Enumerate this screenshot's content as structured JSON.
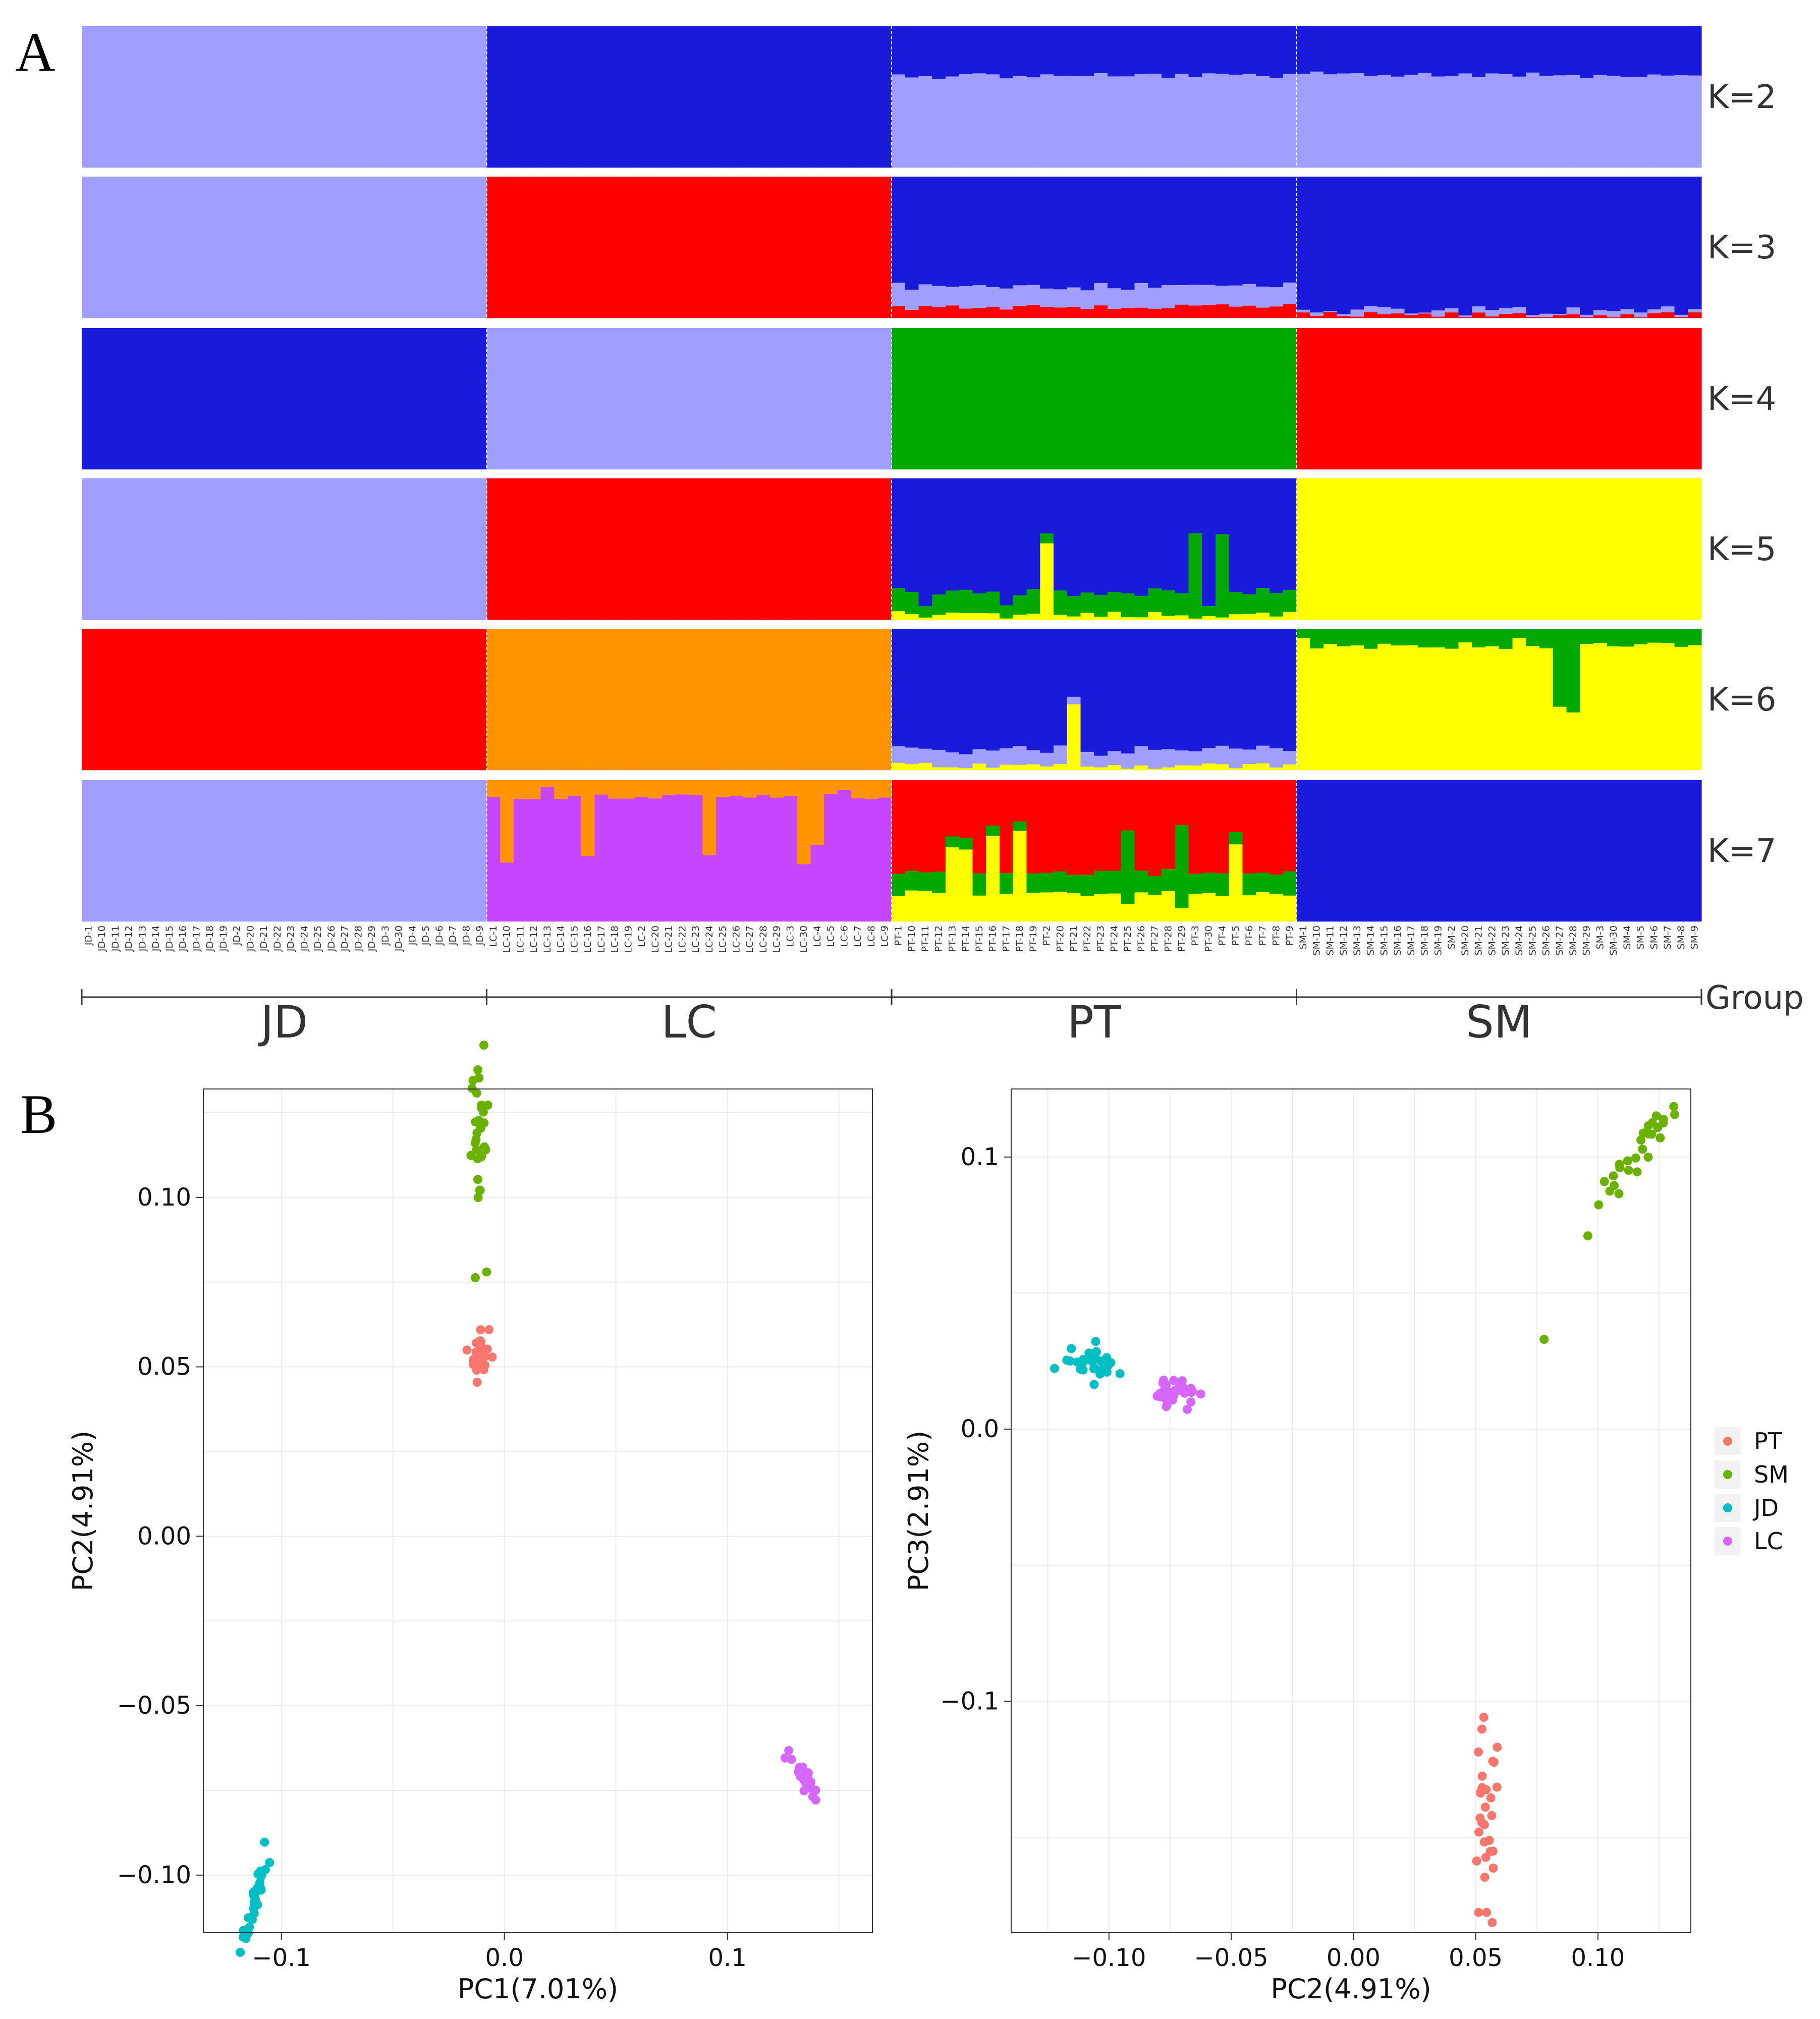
{
  "figure": {
    "panel_a_letter": "A",
    "panel_b_letter": "B"
  },
  "colors": {
    "lightblue": "#9f9fff",
    "blue": "#1a1adb",
    "red": "#ff0000",
    "green": "#00a800",
    "yellow": "#ffff00",
    "orange": "#ff9300",
    "purple": "#c646ff",
    "PT": "#f8766d",
    "SM": "#6bb100",
    "JD": "#00bfc4",
    "LC": "#d666ff"
  },
  "chart_data": [
    {
      "type": "bar",
      "subtype": "stacked-admixture",
      "title": "",
      "xlabel": "Group",
      "ylabel": "",
      "groups": [
        "JD",
        "LC",
        "PT",
        "SM"
      ],
      "group_axis_title": "Group",
      "samples": {
        "JD": [
          "JD-1",
          "JD-10",
          "JD-11",
          "JD-12",
          "JD-13",
          "JD-14",
          "JD-15",
          "JD-16",
          "JD-17",
          "JD-18",
          "JD-19",
          "JD-2",
          "JD-20",
          "JD-21",
          "JD-22",
          "JD-23",
          "JD-24",
          "JD-25",
          "JD-26",
          "JD-27",
          "JD-28",
          "JD-29",
          "JD-3",
          "JD-30",
          "JD-4",
          "JD-5",
          "JD-6",
          "JD-7",
          "JD-8",
          "JD-9"
        ],
        "LC": [
          "LC-1",
          "LC-10",
          "LC-11",
          "LC-12",
          "LC-13",
          "LC-14",
          "LC-15",
          "LC-16",
          "LC-17",
          "LC-18",
          "LC-19",
          "LC-2",
          "LC-20",
          "LC-21",
          "LC-22",
          "LC-23",
          "LC-24",
          "LC-25",
          "LC-26",
          "LC-27",
          "LC-28",
          "LC-29",
          "LC-3",
          "LC-30",
          "LC-4",
          "LC-5",
          "LC-6",
          "LC-7",
          "LC-8",
          "LC-9"
        ],
        "PT": [
          "PT-1",
          "PT-10",
          "PT-11",
          "PT-12",
          "PT-13",
          "PT-14",
          "PT-15",
          "PT-16",
          "PT-17",
          "PT-18",
          "PT-19",
          "PT-2",
          "PT-20",
          "PT-21",
          "PT-22",
          "PT-23",
          "PT-24",
          "PT-25",
          "PT-26",
          "PT-27",
          "PT-28",
          "PT-29",
          "PT-3",
          "PT-30",
          "PT-4",
          "PT-5",
          "PT-6",
          "PT-7",
          "PT-8",
          "PT-9"
        ],
        "SM": [
          "SM-1",
          "SM-10",
          "SM-11",
          "SM-12",
          "SM-13",
          "SM-14",
          "SM-15",
          "SM-16",
          "SM-17",
          "SM-18",
          "SM-19",
          "SM-2",
          "SM-20",
          "SM-21",
          "SM-22",
          "SM-23",
          "SM-24",
          "SM-25",
          "SM-26",
          "SM-27",
          "SM-28",
          "SM-29",
          "SM-3",
          "SM-30",
          "SM-4",
          "SM-5",
          "SM-6",
          "SM-7",
          "SM-8",
          "SM-9"
        ]
      },
      "rows": [
        {
          "label": "K=2",
          "base": {
            "JD": [
              "lightblue"
            ],
            "LC": [
              "blue"
            ],
            "PT": [
              "lightblue",
              "blue"
            ],
            "SM": [
              "lightblue",
              "blue"
            ]
          },
          "props": {
            "PT": [
              0.65,
              0.35
            ],
            "SM": [
              0.66,
              0.34
            ]
          }
        },
        {
          "label": "K=3",
          "base": {
            "JD": [
              "lightblue"
            ],
            "LC": [
              "red"
            ],
            "PT": [
              "red",
              "lightblue",
              "blue"
            ],
            "SM": [
              "red",
              "lightblue",
              "blue"
            ]
          },
          "props": {
            "PT": [
              0.08,
              0.15,
              0.77
            ],
            "SM": [
              0.02,
              0.03,
              0.95
            ]
          }
        },
        {
          "label": "K=4",
          "base": {
            "JD": [
              "blue"
            ],
            "LC": [
              "lightblue"
            ],
            "PT": [
              "green"
            ],
            "SM": [
              "red"
            ]
          }
        },
        {
          "label": "K=5",
          "base": {
            "JD": [
              "lightblue"
            ],
            "LC": [
              "red"
            ],
            "PT": [
              "yellow",
              "green",
              "blue"
            ],
            "SM": [
              "yellow"
            ]
          },
          "props": {
            "PT": [
              0.04,
              0.16,
              0.8
            ]
          }
        },
        {
          "label": "K=6",
          "base": {
            "JD": [
              "red"
            ],
            "LC": [
              "orange"
            ],
            "PT": [
              "yellow",
              "lightblue",
              "blue"
            ],
            "SM": [
              "yellow",
              "green"
            ]
          },
          "props": {
            "PT": [
              0.03,
              0.12,
              0.85
            ],
            "SM": [
              0.88,
              0.12
            ]
          }
        },
        {
          "label": "K=7",
          "base": {
            "JD": [
              "lightblue"
            ],
            "LC": [
              "purple",
              "orange"
            ],
            "PT": [
              "yellow",
              "green",
              "red"
            ],
            "SM": [
              "blue"
            ]
          },
          "props": {
            "LC": [
              0.88,
              0.12
            ],
            "PT": [
              0.2,
              0.15,
              0.65
            ]
          }
        }
      ]
    },
    {
      "type": "scatter",
      "title": "",
      "xlabel": "PC1(7.01%)",
      "ylabel": "PC2(4.91%)",
      "xlim": [
        -0.135,
        0.165
      ],
      "ylim": [
        -0.117,
        0.132
      ],
      "xticks": [
        -0.1,
        0.0,
        0.1
      ],
      "xtick_labels": [
        "−0.1",
        "0.0",
        "0.1"
      ],
      "yticks": [
        -0.1,
        -0.05,
        0.0,
        0.05,
        0.1
      ],
      "ytick_labels": [
        "−0.10",
        "−0.05",
        "0.00",
        "0.05",
        "0.10"
      ],
      "grid": true,
      "series": [
        {
          "name": "PT",
          "center": [
            -0.011,
            0.054
          ],
          "spread": [
            0.002,
            0.004
          ],
          "n": 29
        },
        {
          "name": "SM",
          "center": [
            -0.011,
            0.117
          ],
          "spread": [
            0.002,
            0.012
          ],
          "n": 29,
          "outliers": [
            [
              -0.008,
              0.078
            ]
          ]
        },
        {
          "name": "JD",
          "center": [
            -0.112,
            -0.107
          ],
          "spread": [
            0.003,
            0.006
          ],
          "n": 30
        },
        {
          "name": "LC",
          "center": [
            0.136,
            -0.073
          ],
          "spread": [
            0.004,
            0.004
          ],
          "n": 30
        }
      ]
    },
    {
      "type": "scatter",
      "title": "",
      "xlabel": "PC2(4.91%)",
      "ylabel": "PC3(2.91%)",
      "xlim": [
        -0.14,
        0.138
      ],
      "ylim": [
        -0.185,
        0.125
      ],
      "xticks": [
        -0.1,
        -0.05,
        0.0,
        0.05,
        0.1
      ],
      "xtick_labels": [
        "−0.10",
        "−0.05",
        "0.00",
        "0.05",
        "0.10"
      ],
      "yticks": [
        -0.1,
        0.0,
        0.1
      ],
      "ytick_labels": [
        "−0.1",
        "0.0",
        "0.1"
      ],
      "grid": true,
      "legend": {
        "position": "right",
        "entries": [
          "PT",
          "SM",
          "JD",
          "LC"
        ]
      },
      "series": [
        {
          "name": "PT",
          "center": [
            0.054,
            -0.148
          ],
          "spread": [
            0.003,
            0.02
          ],
          "n": 30
        },
        {
          "name": "SM",
          "center": [
            0.116,
            0.1
          ],
          "spread": [
            0.008,
            0.01
          ],
          "n": 29,
          "outliers": [
            [
              0.078,
              0.033
            ]
          ]
        },
        {
          "name": "JD",
          "center": [
            -0.107,
            0.025
          ],
          "spread": [
            0.006,
            0.003
          ],
          "n": 30
        },
        {
          "name": "LC",
          "center": [
            -0.072,
            0.014
          ],
          "spread": [
            0.004,
            0.003
          ],
          "n": 30
        }
      ]
    }
  ]
}
